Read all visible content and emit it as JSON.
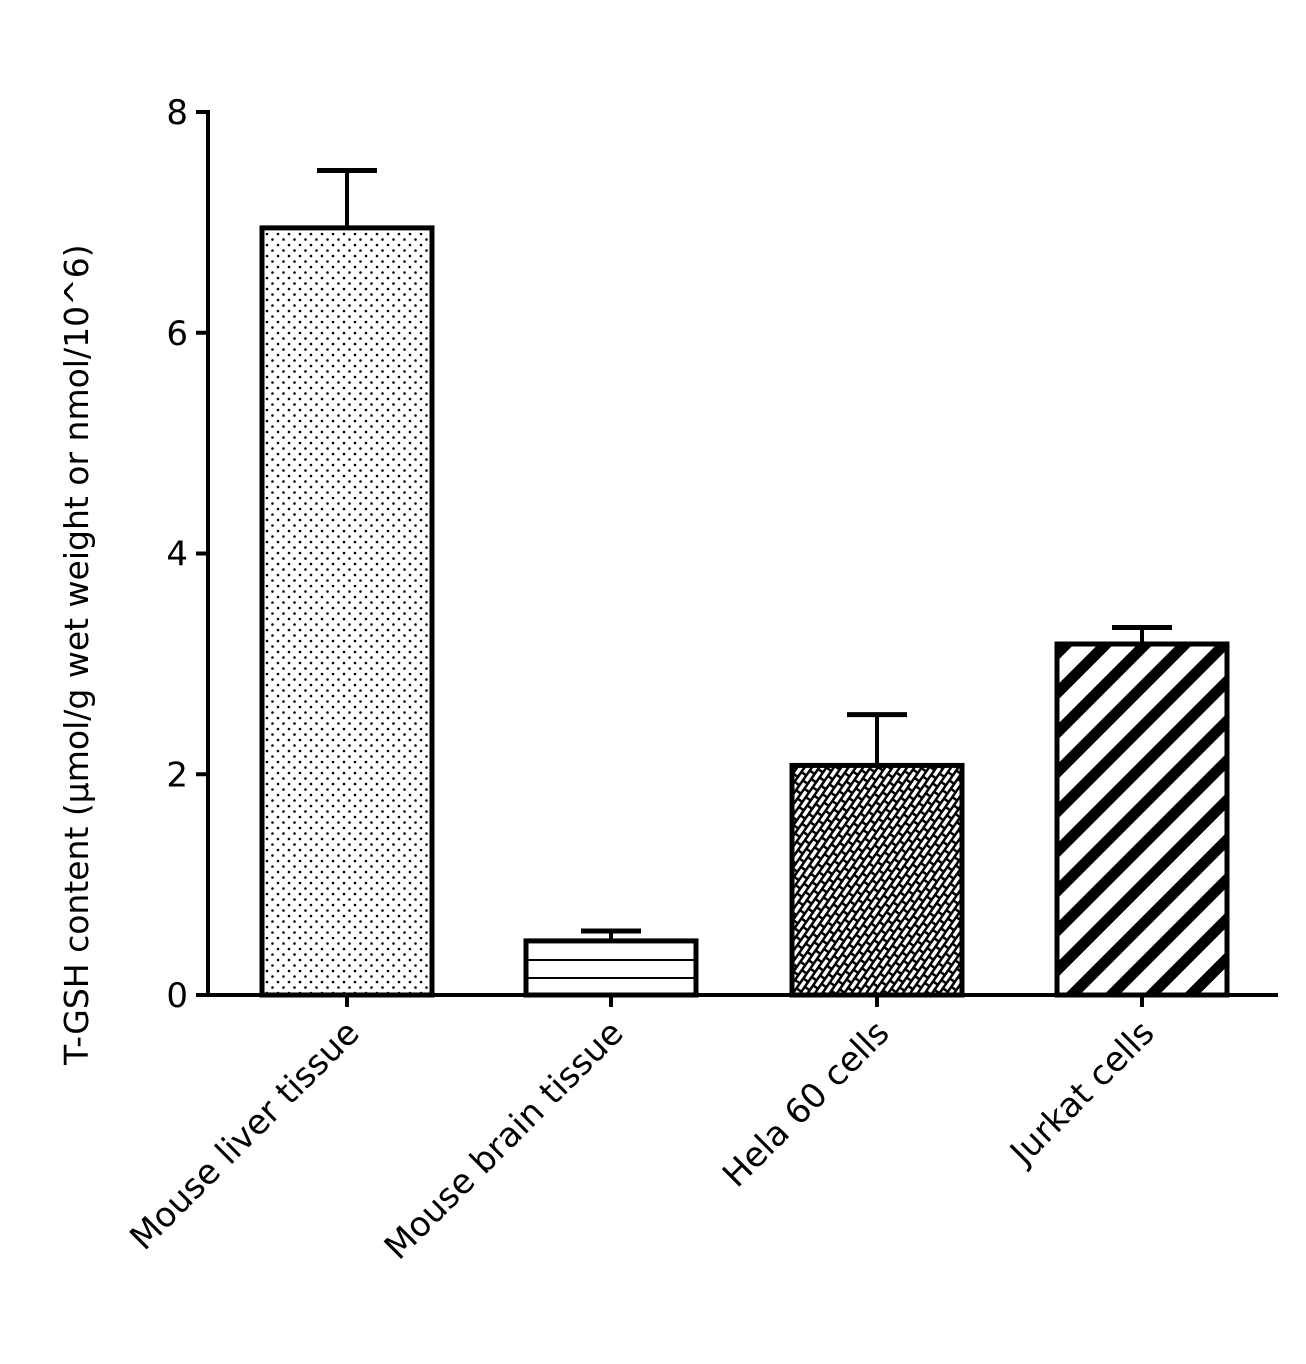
{
  "chart_data": {
    "type": "bar",
    "title": "",
    "xlabel": "",
    "ylabel": "T-GSH content (μmol/g wet weight or nmol/10^6)",
    "ylim": [
      0,
      8
    ],
    "yticks": [
      "0",
      "2",
      "4",
      "6",
      "8"
    ],
    "grid": false,
    "categories": [
      "Mouse liver tissue",
      "Mouse brain tissue",
      "Hela 60 cells",
      "Jurkat cells"
    ],
    "values": [
      6.95,
      0.49,
      2.08,
      3.18
    ],
    "error_upper": [
      7.47,
      0.58,
      2.54,
      3.33
    ],
    "fill_patterns": [
      "dots",
      "horizontal-lines",
      "brick-diagonal",
      "diagonal-stripes"
    ],
    "colors": {
      "stroke": "#000000",
      "fill": "#ffffff"
    }
  }
}
